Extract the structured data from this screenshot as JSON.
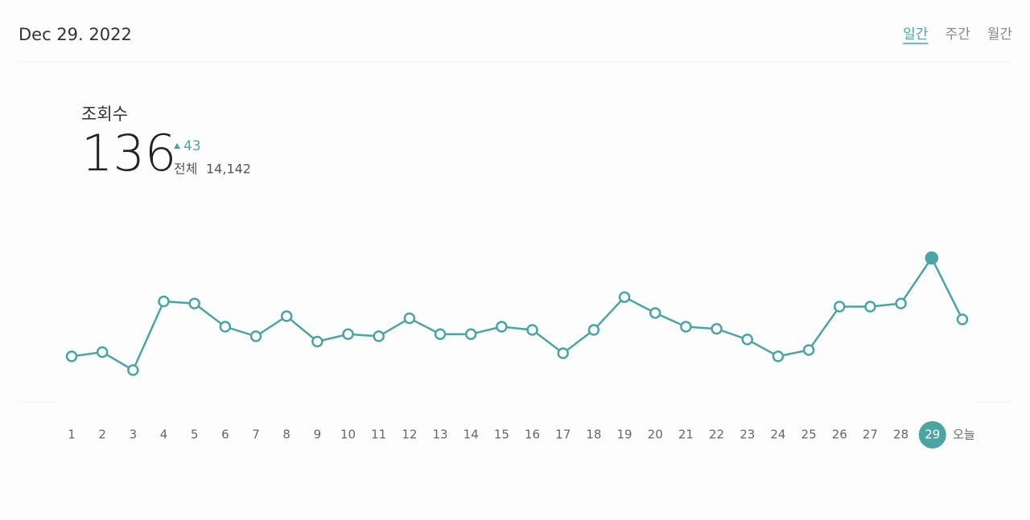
{
  "header": {
    "date": "Dec 29. 2022",
    "tabs": [
      "일간",
      "주간",
      "월간"
    ],
    "active_tab": 0
  },
  "summary": {
    "label": "조회수",
    "value": 136,
    "change": 43,
    "total_label": "전체",
    "total": "14,142"
  },
  "chart_data": {
    "type": "line",
    "color": "#4aa5a2",
    "categories": [
      "1",
      "2",
      "3",
      "4",
      "5",
      "6",
      "7",
      "8",
      "9",
      "10",
      "11",
      "12",
      "13",
      "14",
      "15",
      "16",
      "17",
      "18",
      "19",
      "20",
      "21",
      "22",
      "23",
      "24",
      "25",
      "26",
      "27",
      "28",
      "29",
      "오늘"
    ],
    "values": [
      43,
      47,
      30,
      95,
      93,
      71,
      62,
      81,
      57,
      64,
      62,
      79,
      64,
      64,
      71,
      68,
      46,
      68,
      99,
      84,
      71,
      69,
      59,
      43,
      49,
      90,
      90,
      93,
      136,
      78
    ]
  }
}
